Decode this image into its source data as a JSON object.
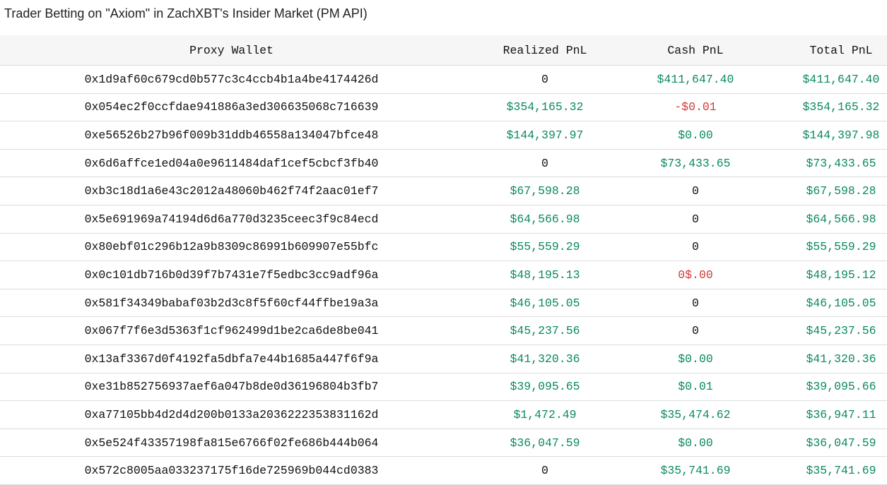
{
  "title": "Trader Betting on \"Axiom\" in ZachXBT's Insider Market (PM API)",
  "colors": {
    "positive": "#0b8a60",
    "negative": "#d33a3a",
    "neutral": "#111111",
    "header_bg": "#f6f6f6"
  },
  "columns": [
    "Proxy Wallet",
    "Realized PnL",
    "Cash PnL",
    "Total PnL"
  ],
  "rows": [
    {
      "wallet": "0x1d9af60c679cd0b577c3c4ccb4b1a4be4174426d",
      "realized": "0",
      "realized_tone": "zero",
      "cash": "$411,647.40",
      "cash_tone": "pos",
      "total": "$411,647.40",
      "total_tone": "pos"
    },
    {
      "wallet": "0x054ec2f0ccfdae941886a3ed306635068c716639",
      "realized": "$354,165.32",
      "realized_tone": "pos",
      "cash": "-$0.01",
      "cash_tone": "neg",
      "total": "$354,165.32",
      "total_tone": "pos"
    },
    {
      "wallet": "0xe56526b27b96f009b31ddb46558a134047bfce48",
      "realized": "$144,397.97",
      "realized_tone": "pos",
      "cash": "$0.00",
      "cash_tone": "pos",
      "total": "$144,397.98",
      "total_tone": "pos"
    },
    {
      "wallet": "0x6d6affce1ed04a0e9611484daf1cef5cbcf3fb40",
      "realized": "0",
      "realized_tone": "zero",
      "cash": "$73,433.65",
      "cash_tone": "pos",
      "total": "$73,433.65",
      "total_tone": "pos"
    },
    {
      "wallet": "0xb3c18d1a6e43c2012a48060b462f74f2aac01ef7",
      "realized": "$67,598.28",
      "realized_tone": "pos",
      "cash": "0",
      "cash_tone": "zero",
      "total": "$67,598.28",
      "total_tone": "pos"
    },
    {
      "wallet": "0x5e691969a74194d6d6a770d3235ceec3f9c84ecd",
      "realized": "$64,566.98",
      "realized_tone": "pos",
      "cash": "0",
      "cash_tone": "zero",
      "total": "$64,566.98",
      "total_tone": "pos"
    },
    {
      "wallet": "0x80ebf01c296b12a9b8309c86991b609907e55bfc",
      "realized": "$55,559.29",
      "realized_tone": "pos",
      "cash": "0",
      "cash_tone": "zero",
      "total": "$55,559.29",
      "total_tone": "pos"
    },
    {
      "wallet": "0x0c101db716b0d39f7b7431e7f5edbc3cc9adf96a",
      "realized": "$48,195.13",
      "realized_tone": "pos",
      "cash": "0$.00",
      "cash_tone": "neg",
      "total": "$48,195.12",
      "total_tone": "pos"
    },
    {
      "wallet": "0x581f34349babaf03b2d3c8f5f60cf44ffbe19a3a",
      "realized": "$46,105.05",
      "realized_tone": "pos",
      "cash": "0",
      "cash_tone": "zero",
      "total": "$46,105.05",
      "total_tone": "pos"
    },
    {
      "wallet": "0x067f7f6e3d5363f1cf962499d1be2ca6de8be041",
      "realized": "$45,237.56",
      "realized_tone": "pos",
      "cash": "0",
      "cash_tone": "zero",
      "total": "$45,237.56",
      "total_tone": "pos"
    },
    {
      "wallet": "0x13af3367d0f4192fa5dbfa7e44b1685a447f6f9a",
      "realized": "$41,320.36",
      "realized_tone": "pos",
      "cash": "$0.00",
      "cash_tone": "pos",
      "total": "$41,320.36",
      "total_tone": "pos"
    },
    {
      "wallet": "0xe31b852756937aef6a047b8de0d36196804b3fb7",
      "realized": "$39,095.65",
      "realized_tone": "pos",
      "cash": "$0.01",
      "cash_tone": "pos",
      "total": "$39,095.66",
      "total_tone": "pos"
    },
    {
      "wallet": "0xa77105bb4d2d4d200b0133a2036222353831162d",
      "realized": "$1,472.49",
      "realized_tone": "pos",
      "cash": "$35,474.62",
      "cash_tone": "pos",
      "total": "$36,947.11",
      "total_tone": "pos"
    },
    {
      "wallet": "0x5e524f43357198fa815e6766f02fe686b444b064",
      "realized": "$36,047.59",
      "realized_tone": "pos",
      "cash": "$0.00",
      "cash_tone": "pos",
      "total": "$36,047.59",
      "total_tone": "pos"
    },
    {
      "wallet": "0x572c8005aa033237175f16de725969b044cd0383",
      "realized": "0",
      "realized_tone": "zero",
      "cash": "$35,741.69",
      "cash_tone": "pos",
      "total": "$35,741.69",
      "total_tone": "pos"
    }
  ]
}
